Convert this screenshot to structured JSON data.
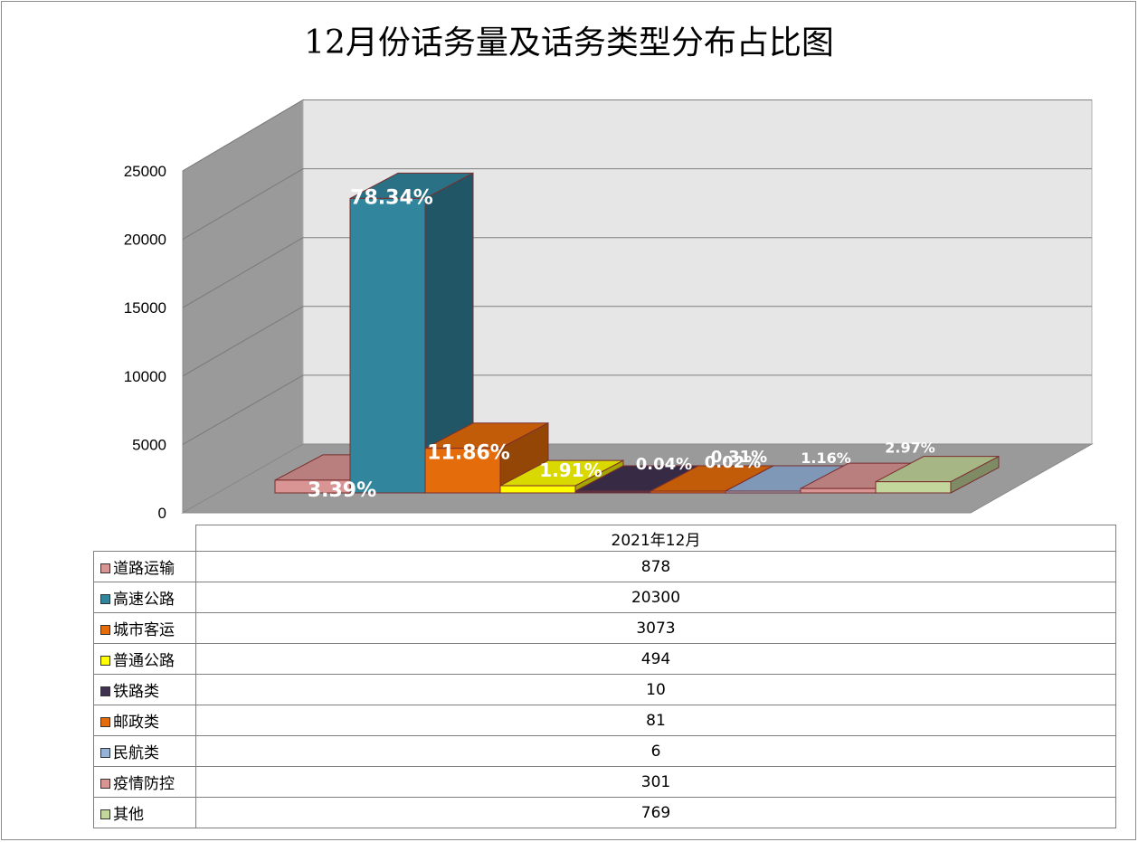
{
  "chart_data": {
    "type": "bar",
    "title": "12月份话务量及话务类型分布占比图",
    "series_name": "2021年12月",
    "categories": [
      "道路运输",
      "高速公路",
      "城市客运",
      "普通公路",
      "铁路类",
      "邮政类",
      "民航类",
      "疫情防控",
      "其他"
    ],
    "values": [
      878,
      20300,
      3073,
      494,
      10,
      81,
      6,
      301,
      769
    ],
    "percent_labels": [
      "3.39%",
      "78.34%",
      "11.86%",
      "1.91%",
      "0.04%",
      "0.31%",
      "0.02%",
      "1.16%",
      "2.97%"
    ],
    "value_labels": [
      "878",
      "20300",
      "3073",
      "494",
      "10",
      "81",
      "6",
      "301",
      "769"
    ],
    "colors": [
      "#d99594",
      "#31859c",
      "#e46c0a",
      "#ffff00",
      "#403151",
      "#e46c0a",
      "#95b3d7",
      "#d99594",
      "#c3d69b"
    ],
    "ylim": [
      0,
      25000
    ],
    "y_ticks": [
      "0",
      "5000",
      "10000",
      "15000",
      "20000",
      "25000"
    ],
    "gridlines": true,
    "legend": "data-table"
  }
}
